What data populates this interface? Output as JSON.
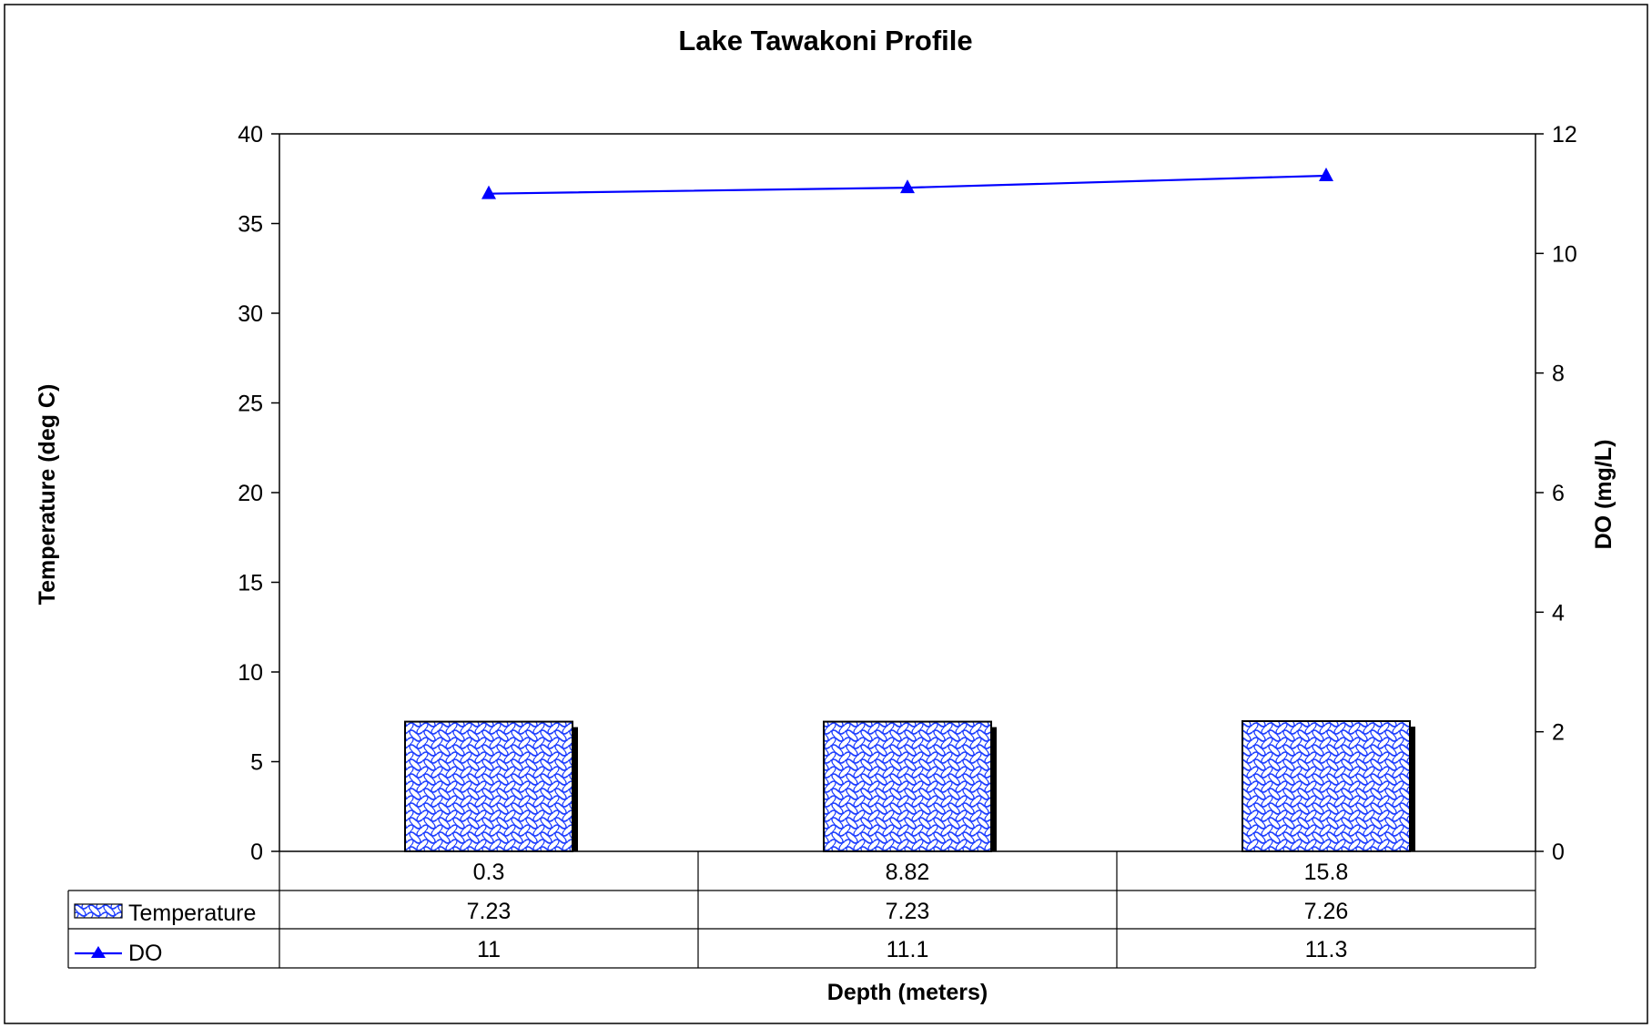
{
  "chart_data": {
    "type": "bar",
    "title": "Lake Tawakoni Profile",
    "xlabel": "Depth (meters)",
    "ylabel": "Temperature (deg C)",
    "y2label": "DO (mg/L)",
    "categories": [
      "0.3",
      "8.82",
      "15.8"
    ],
    "ylim": [
      0,
      40
    ],
    "y_ticks": [
      "0",
      "5",
      "10",
      "15",
      "20",
      "25",
      "30",
      "35",
      "40"
    ],
    "y2lim": [
      0,
      12
    ],
    "y2_ticks": [
      "0",
      "2",
      "4",
      "6",
      "8",
      "10",
      "12"
    ],
    "grid": false,
    "legend_placement": "data-table",
    "series": [
      {
        "name": "Temperature",
        "type": "bar",
        "axis": "left",
        "values": [
          7.23,
          7.23,
          7.26
        ],
        "labels": [
          "7.23",
          "7.23",
          "7.26"
        ],
        "color": "#1f3fff"
      },
      {
        "name": "DO",
        "type": "line",
        "axis": "right",
        "marker": "triangle",
        "values": [
          11,
          11.1,
          11.3
        ],
        "labels": [
          "11",
          "11.1",
          "11.3"
        ],
        "color": "#0000ff"
      }
    ]
  }
}
